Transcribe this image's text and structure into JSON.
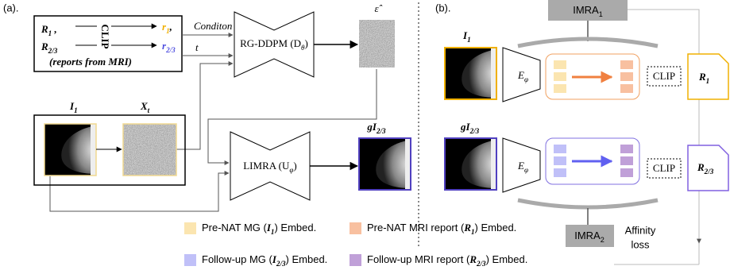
{
  "panel_a": {
    "label": "(a).",
    "r1_input": {
      "base": "R",
      "sub": "1",
      "suffix": " ,"
    },
    "r23_input": {
      "base": "R",
      "sub": "2/3"
    },
    "clip": "CLIP",
    "r1_output": {
      "base": "r",
      "sub": "1",
      "suffix": ","
    },
    "r23_output": {
      "base": "r",
      "sub": "2/3"
    },
    "reports_note": "(reports from MRI)",
    "condition_label": "Conditon",
    "t_label": "t",
    "rg_ddpm": {
      "base": "RG-DDPM (D",
      "sub": "θ",
      "suffix": ")"
    },
    "epsilon": "ε̂",
    "i1": {
      "base": "I",
      "sub": "1"
    },
    "xt": {
      "base": "X",
      "sub": "t"
    },
    "limra": {
      "base": "LIMRA (U",
      "sub": "φ",
      "suffix": ")"
    },
    "gi23": {
      "base": "gI",
      "sub": "2/3"
    }
  },
  "panel_b": {
    "label": "(b).",
    "imra1": {
      "base": "IMRA",
      "sub": "1"
    },
    "i1": {
      "base": "I",
      "sub": "1"
    },
    "encoder_top": {
      "base": "E",
      "sub": "φ"
    },
    "clip_top": "CLIP",
    "r1": {
      "base": "R",
      "sub": "1"
    },
    "gi23": {
      "base": "gI",
      "sub": "2/3"
    },
    "encoder_bottom": {
      "base": "E",
      "sub": "φ"
    },
    "clip_bottom": "CLIP",
    "r23": {
      "base": "R",
      "sub": "2/3"
    },
    "imra2": {
      "base": "IMRA",
      "sub": "2"
    },
    "affinity_loss": [
      "Affinity",
      "loss"
    ]
  },
  "legend": [
    {
      "before": "Pre-NAT MG (",
      "symbol": {
        "base": "I",
        "sub": "1"
      },
      "after": ") Embed."
    },
    {
      "before": "Pre-NAT MRI report (",
      "symbol": {
        "base": "R",
        "sub": "1"
      },
      "after": ") Embed."
    },
    {
      "before": "Follow-up MG (",
      "symbol": {
        "base": "I",
        "sub": "2/3"
      },
      "after": ") Embed."
    },
    {
      "before": "Follow-up MRI report (",
      "symbol": {
        "base": "R",
        "sub": "2/3"
      },
      "after": ") Embed."
    }
  ]
}
